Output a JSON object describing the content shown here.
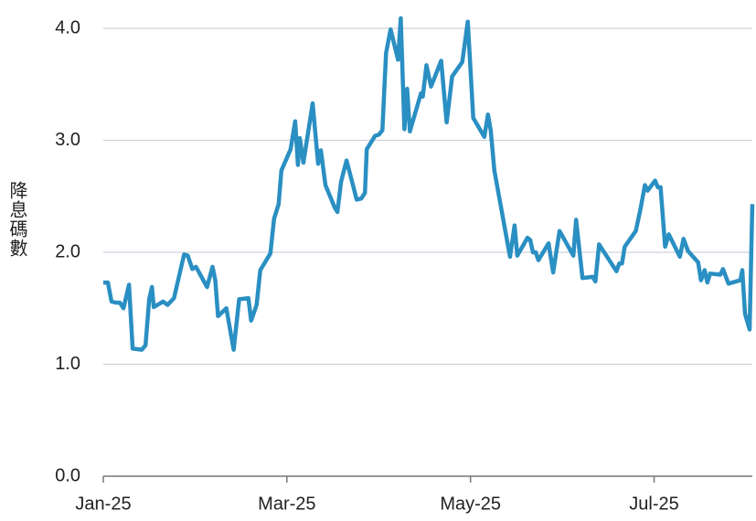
{
  "chart_data": {
    "type": "line",
    "y_label": "降息碼數",
    "color": "#2a8fc2",
    "grid": true,
    "xlim": [
      0,
      7.07
    ],
    "xticks": [
      {
        "value": 0,
        "label": "Jan-25"
      },
      {
        "value": 2,
        "label": "Mar-25"
      },
      {
        "value": 4,
        "label": "May-25"
      },
      {
        "value": 6,
        "label": "Jul-25"
      }
    ],
    "ylim": [
      0,
      4
    ],
    "yticks": [
      {
        "value": 0,
        "label": "0.0"
      },
      {
        "value": 1,
        "label": "1.0"
      },
      {
        "value": 2,
        "label": "2.0"
      },
      {
        "value": 3,
        "label": "3.0"
      },
      {
        "value": 4,
        "label": "4.0"
      }
    ],
    "x": [
      0,
      0.05,
      0.09,
      0.14,
      0.18,
      0.22,
      0.28,
      0.32,
      0.42,
      0.46,
      0.5,
      0.53,
      0.55,
      0.65,
      0.7,
      0.77,
      0.88,
      0.92,
      0.97,
      1.01,
      1.13,
      1.19,
      1.22,
      1.25,
      1.34,
      1.42,
      1.48,
      1.58,
      1.61,
      1.67,
      1.71,
      1.82,
      1.86,
      1.91,
      1.94,
      2.04,
      2.09,
      2.12,
      2.14,
      2.18,
      2.28,
      2.34,
      2.37,
      2.42,
      2.52,
      2.55,
      2.59,
      2.65,
      2.76,
      2.81,
      2.85,
      2.87,
      2.96,
      3.0,
      3.04,
      3.08,
      3.13,
      3.21,
      3.24,
      3.28,
      3.31,
      3.34,
      3.46,
      3.48,
      3.52,
      3.57,
      3.68,
      3.74,
      3.8,
      3.91,
      3.97,
      4.03,
      4.15,
      4.19,
      4.22,
      4.26,
      4.43,
      4.48,
      4.51,
      4.62,
      4.65,
      4.68,
      4.71,
      4.74,
      4.85,
      4.9,
      4.97,
      5.12,
      5.15,
      5.22,
      5.33,
      5.36,
      5.4,
      5.59,
      5.62,
      5.65,
      5.68,
      5.8,
      5.85,
      5.9,
      5.93,
      6.01,
      6.04,
      6.07,
      6.12,
      6.16,
      6.28,
      6.32,
      6.37,
      6.48,
      6.51,
      6.55,
      6.58,
      6.61,
      6.72,
      6.75,
      6.81,
      6.94,
      6.96,
      6.99,
      7.04,
      7.07
    ],
    "values": [
      1.73,
      1.73,
      1.56,
      1.55,
      1.55,
      1.5,
      1.71,
      1.14,
      1.13,
      1.17,
      1.58,
      1.69,
      1.51,
      1.56,
      1.53,
      1.59,
      1.98,
      1.97,
      1.85,
      1.87,
      1.69,
      1.87,
      1.75,
      1.43,
      1.5,
      1.13,
      1.58,
      1.59,
      1.39,
      1.53,
      1.84,
      1.99,
      2.3,
      2.43,
      2.73,
      2.92,
      3.17,
      2.78,
      3.02,
      2.8,
      3.33,
      2.79,
      2.91,
      2.6,
      2.4,
      2.36,
      2.63,
      2.82,
      2.47,
      2.48,
      2.53,
      2.92,
      3.04,
      3.05,
      3.09,
      3.78,
      3.99,
      3.72,
      4.09,
      3.1,
      3.46,
      3.08,
      3.42,
      3.39,
      3.67,
      3.48,
      3.71,
      3.16,
      3.57,
      3.7,
      4.06,
      3.2,
      3.03,
      3.23,
      3.09,
      2.73,
      1.96,
      2.24,
      1.97,
      2.13,
      2.11,
      2.0,
      2.0,
      1.93,
      2.08,
      1.82,
      2.19,
      1.97,
      2.29,
      1.77,
      1.78,
      1.74,
      2.07,
      1.83,
      1.9,
      1.9,
      2.05,
      2.19,
      2.38,
      2.6,
      2.55,
      2.64,
      2.58,
      2.58,
      2.05,
      2.16,
      1.96,
      2.12,
      2.01,
      1.91,
      1.75,
      1.84,
      1.73,
      1.81,
      1.8,
      1.85,
      1.72,
      1.75,
      1.84,
      1.45,
      1.31,
      2.43
    ]
  }
}
